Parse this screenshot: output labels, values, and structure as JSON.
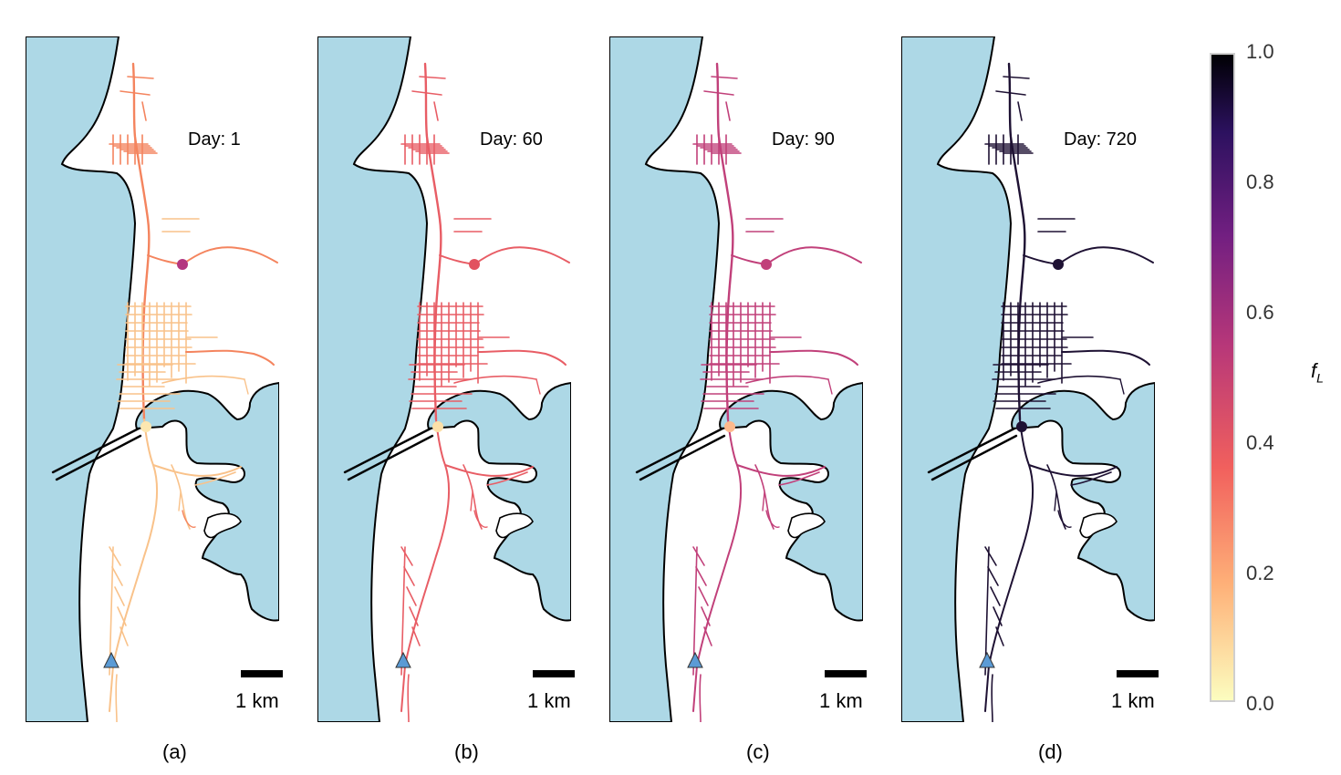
{
  "panels": [
    {
      "caption": "(a)",
      "day_label": "Day: 1",
      "scale_label": "1 km",
      "network_color": "#f9c28a",
      "accent_color": "#f4845e",
      "node_color": "#fde7b0",
      "north_node_color": "#b3367f"
    },
    {
      "caption": "(b)",
      "day_label": "Day: 60",
      "scale_label": "1 km",
      "network_color": "#e85d65",
      "accent_color": "#e85d65",
      "node_color": "#fde0a8",
      "north_node_color": "#e2525f"
    },
    {
      "caption": "(c)",
      "day_label": "Day: 90",
      "scale_label": "1 km",
      "network_color": "#c1407a",
      "accent_color": "#c1407a",
      "node_color": "#fdb98c",
      "north_node_color": "#c1407a"
    },
    {
      "caption": "(d)",
      "day_label": "Day: 720",
      "scale_label": "1 km",
      "network_color": "#1e1133",
      "accent_color": "#1e1133",
      "node_color": "#1e1133",
      "north_node_color": "#1e1133"
    }
  ],
  "colorbar": {
    "label": "f",
    "label_sub": "L",
    "ticks": [
      "1.0",
      "0.8",
      "0.6",
      "0.4",
      "0.2",
      "0.0"
    ],
    "range": [
      0.0,
      1.0
    ],
    "colormap": "magma_r"
  },
  "colors": {
    "water": "#add8e6",
    "land": "#ffffff",
    "coast": "#000000",
    "source_marker": "#5b9bd5"
  }
}
